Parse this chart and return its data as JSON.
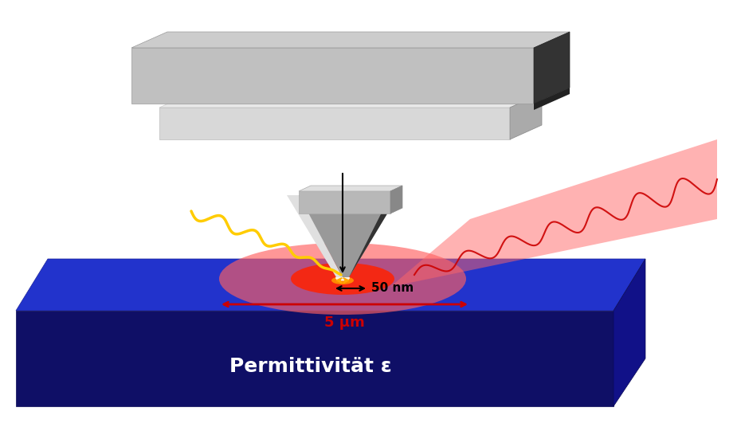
{
  "bg_color": "#ffffff",
  "substrate_text": "Permittivität ε",
  "substrate_text_color": "#ffffff",
  "substrate_text_fontsize": 18,
  "label_50nm": "50 nm",
  "label_5um": "5 μm",
  "label_color_black": "#000000",
  "label_color_red": "#cc0000",
  "cantilever_main_bar_color_top": "#c8c8c8",
  "cantilever_main_bar_color_front": "#a0a0a0",
  "cantilever_main_bar_color_right": "#333333",
  "cantilever_chip_color_top": "#e0e0e0",
  "cantilever_chip_color_front": "#b8b8b8",
  "cantilever_chip_color_right": "#888888",
  "tip_color_left": "#e8e8e8",
  "tip_color_center": "#c0c0c0",
  "tip_color_right": "#555555",
  "substrate_top_color": "#2233cc",
  "substrate_front_color": "#0f0f66",
  "substrate_right_color": "#111188",
  "spot_outer_color": "#ff6060",
  "spot_outer_alpha": 0.65,
  "spot_mid_color": "#ff2200",
  "spot_mid_alpha": 0.85,
  "spot_hot_color": "#ff8800",
  "spot_hot_alpha": 1.0,
  "beam_color": "#ff6666",
  "beam_alpha": 0.5,
  "yellow_color": "#ffcc00",
  "red_wave_color": "#cc0000"
}
